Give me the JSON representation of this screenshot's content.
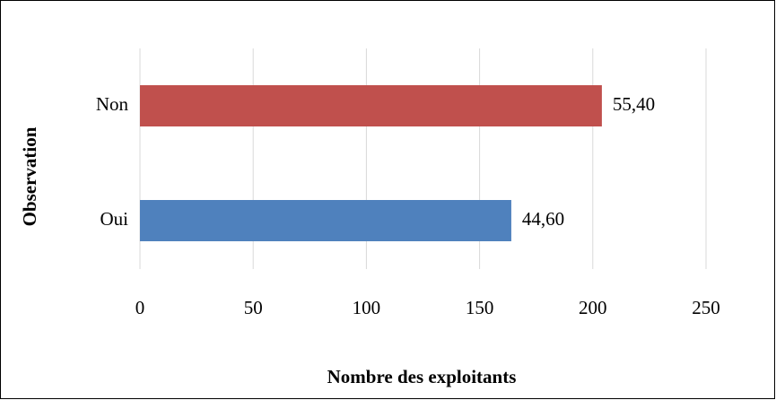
{
  "chart_data": {
    "type": "barh",
    "xlabel": "Nombre des exploitants",
    "ylabel": "Observation",
    "categories": [
      "Oui",
      "Non"
    ],
    "values": [
      164,
      204
    ],
    "data_labels": [
      "44,60",
      "55,40"
    ],
    "colors": [
      "#4f81bd",
      "#c0504d"
    ],
    "xlim": [
      0,
      250
    ],
    "xticks": [
      0,
      50,
      100,
      150,
      200,
      250
    ],
    "grid": true
  }
}
